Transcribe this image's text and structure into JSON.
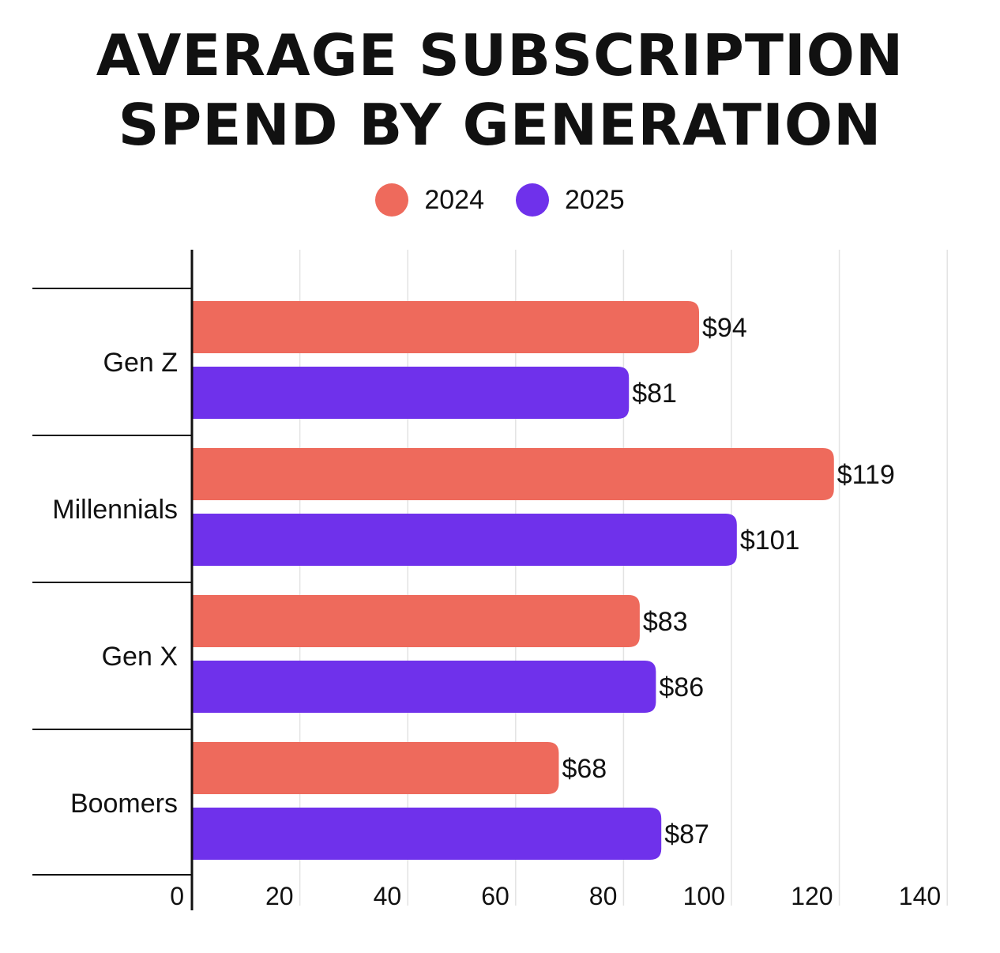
{
  "title_lines": [
    "AVERAGE SUBSCRIPTION",
    "SPEND BY GENERATION"
  ],
  "legend": [
    {
      "label": "2024",
      "color": "#EE6A5C"
    },
    {
      "label": "2025",
      "color": "#6F31EB"
    }
  ],
  "chart_data": {
    "type": "bar",
    "orientation": "horizontal",
    "title": "AVERAGE SUBSCRIPTION SPEND BY GENERATION",
    "categories": [
      "Gen Z",
      "Millennials",
      "Gen X",
      "Boomers"
    ],
    "series": [
      {
        "name": "2024",
        "values": [
          94,
          119,
          83,
          68
        ],
        "labels": [
          "$94",
          "$119",
          "$83",
          "$68"
        ],
        "color": "#EE6A5C"
      },
      {
        "name": "2025",
        "values": [
          81,
          101,
          86,
          87
        ],
        "labels": [
          "$81",
          "$101",
          "$86",
          "$87"
        ],
        "color": "#6F31EB"
      }
    ],
    "xlim": [
      0,
      140
    ],
    "xticks": [
      0,
      20,
      40,
      60,
      80,
      100,
      120,
      140
    ],
    "grid": true,
    "legend_position": "top-center"
  }
}
